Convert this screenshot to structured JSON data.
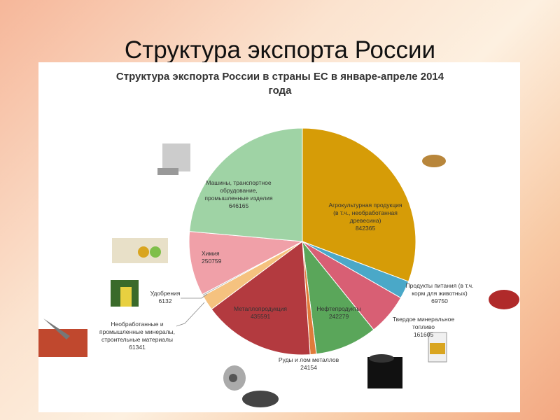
{
  "slide": {
    "title": "Структура экспорта России"
  },
  "chart_data": {
    "type": "pie",
    "title": "Структура экспорта России в страны ЕС в январе-апреле 2014 года",
    "title_lines": [
      "Структура экспорта России в страны ЕС в январе-апреле 2014",
      "года"
    ],
    "slices": [
      {
        "label": "Агрокультурная продукция (в т.ч., необработанная древесина)",
        "label_lines": [
          "Агрокультурная продукция",
          "(в т.ч., необработанная",
          "древесина)"
        ],
        "value": 842365,
        "color": "#d69c07"
      },
      {
        "label": "Продукты питания (в т.ч. корм для животных)",
        "label_lines": [
          "Продукты питания (в т.ч.",
          "корм для животных)"
        ],
        "value": 69750,
        "color": "#4aa8c8"
      },
      {
        "label": "Твердое минеральное топливо",
        "label_lines": [
          "Твердое минеральное",
          "топливо"
        ],
        "value": 161605,
        "color": "#d85f74"
      },
      {
        "label": "Нефтепродукты",
        "label_lines": [
          "Нефтепродукты"
        ],
        "value": 242279,
        "color": "#5aa65a"
      },
      {
        "label": "Руды и лом металлов",
        "label_lines": [
          "Руды и лом металлов"
        ],
        "value": 24154,
        "color": "#e07b3a"
      },
      {
        "label": "Металлопродукция",
        "label_lines": [
          "Металлопродукция"
        ],
        "value": 435591,
        "color": "#b33a3f"
      },
      {
        "label": "Необработанные и промышленные минералы, строительные материалы",
        "label_lines": [
          "Необработанные и",
          "промышленные минералы,",
          "строительные материалы"
        ],
        "value": 61341,
        "color": "#f5c27f"
      },
      {
        "label": "Удобрения",
        "label_lines": [
          "Удобрения"
        ],
        "value": 6132,
        "color": "#b8b8b8"
      },
      {
        "label": "Химия",
        "label_lines": [
          "Химия"
        ],
        "value": 250759,
        "color": "#f0a0a8"
      },
      {
        "label": "Машины, транспортное обрудование, промышленные изделия",
        "label_lines": [
          "Машины, транспортное",
          "обрудование,",
          "промышленные изделия"
        ],
        "value": 646165,
        "color": "#9fd3a5"
      }
    ],
    "legend": "none"
  }
}
